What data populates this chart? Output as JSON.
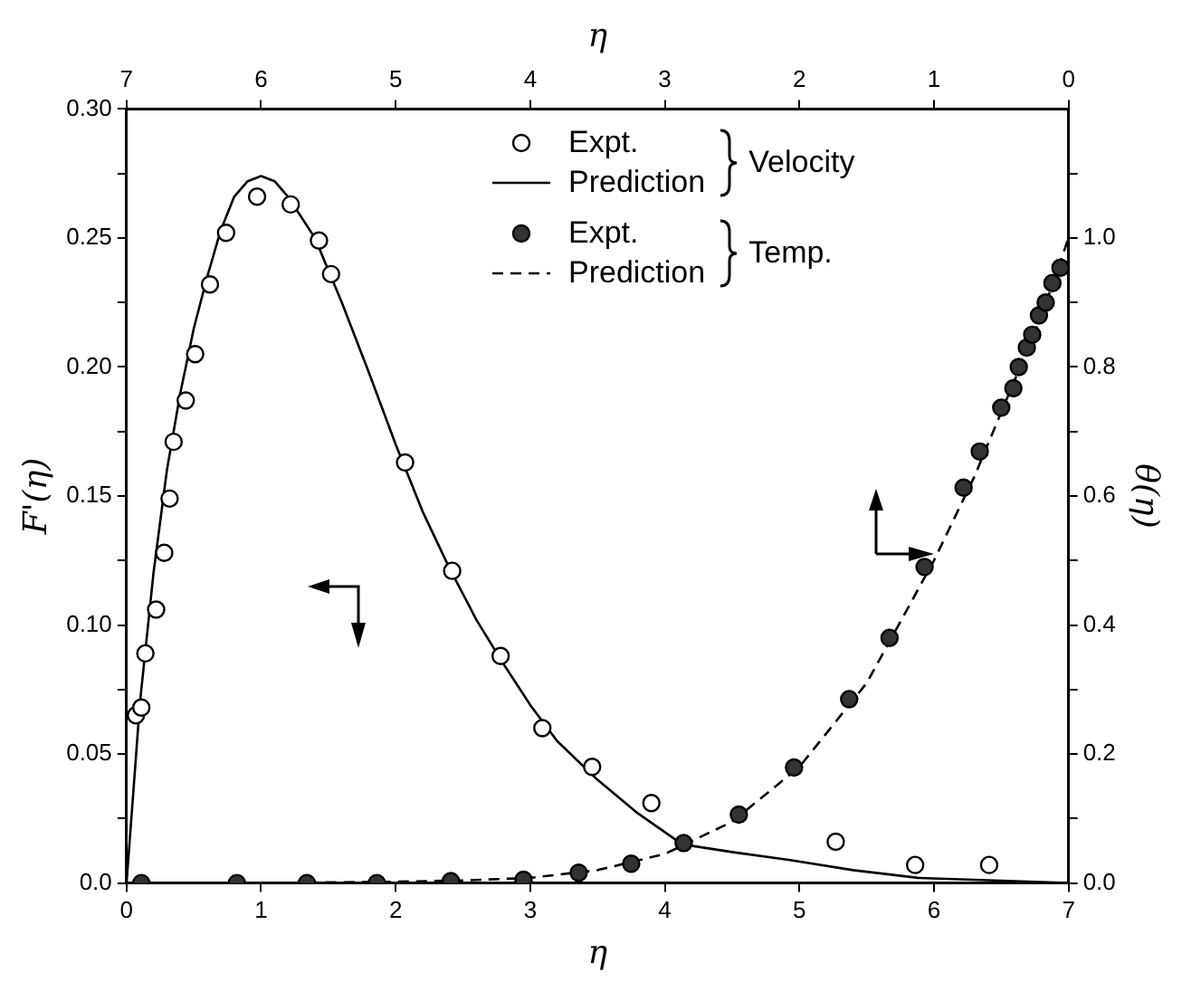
{
  "chart_data": {
    "type": "scatter",
    "xlabel": "η",
    "x2label": "η",
    "ylabel": "F'(η)",
    "y2label": "θ(η)",
    "xlim": [
      0,
      7
    ],
    "xticks": [
      0,
      1,
      2,
      3,
      4,
      5,
      6,
      7
    ],
    "x2lim": [
      7,
      0
    ],
    "x2ticks": [
      7,
      6,
      5,
      4,
      3,
      2,
      1,
      0
    ],
    "ylim": [
      0,
      0.3
    ],
    "yticks": [
      {
        "value": 0,
        "label": "0.0"
      },
      {
        "value": 0.025,
        "label": null
      },
      0.05,
      {
        "value": 0.075,
        "label": null
      },
      {
        "value": 0.1,
        "label": "0.10"
      },
      {
        "value": 0.125,
        "label": null
      },
      0.15,
      {
        "value": 0.175,
        "label": null
      },
      {
        "value": 0.2,
        "label": "0.20"
      },
      {
        "value": 0.225,
        "label": null
      },
      0.25,
      {
        "value": 0.275,
        "label": null
      },
      {
        "value": 0.3,
        "label": "0.30"
      }
    ],
    "y2lim": [
      0,
      1.2
    ],
    "y2ticks": [
      {
        "value": 0,
        "label": "0.0"
      },
      {
        "value": 0.1,
        "label": null
      },
      0.2,
      {
        "value": 0.3,
        "label": null
      },
      0.4,
      {
        "value": 0.5,
        "label": null
      },
      0.6,
      {
        "value": 0.7,
        "label": null
      },
      0.8,
      {
        "value": 0.9,
        "label": null
      },
      {
        "value": 1,
        "label": "1.0"
      },
      {
        "value": 1.1,
        "label": null
      }
    ],
    "grid": false,
    "legend": "top right",
    "annotations": [
      "Velocity",
      "Temp."
    ],
    "series": [
      {
        "name": "Expt.",
        "type": "scatter",
        "marker": "circle",
        "color": "#000000",
        "x": [
          0.07,
          0.11,
          0.14,
          0.22,
          0.28,
          0.32,
          0.35,
          0.44,
          0.51,
          0.62,
          0.74,
          0.97,
          1.22,
          1.43,
          1.52,
          2.07,
          2.42,
          2.78,
          3.09,
          3.46,
          3.9,
          5.27,
          5.86,
          6.41
        ],
        "values": [
          0.065,
          0.068,
          0.089,
          0.106,
          0.128,
          0.149,
          0.171,
          0.187,
          0.205,
          0.232,
          0.252,
          0.266,
          0.263,
          0.249,
          0.236,
          0.163,
          0.121,
          0.088,
          0.06,
          0.045,
          0.031,
          0.016,
          0.007,
          0.007
        ]
      },
      {
        "name": "Prediction",
        "type": "line",
        "marker": "none",
        "line_style": "solid",
        "color": "#000000",
        "x": [
          0,
          0.1,
          0.2,
          0.3,
          0.4,
          0.5,
          0.6,
          0.7,
          0.8,
          0.9,
          1.0,
          1.1,
          1.2,
          1.4,
          1.6,
          1.8,
          2.0,
          2.2,
          2.4,
          2.6,
          2.8,
          3.0,
          3.2,
          3.5,
          3.8,
          4.13,
          4.5,
          4.92,
          5.4,
          5.88,
          6.45,
          7
        ],
        "values": [
          0,
          0.07,
          0.12,
          0.16,
          0.19,
          0.215,
          0.235,
          0.253,
          0.266,
          0.272,
          0.274,
          0.272,
          0.266,
          0.25,
          0.225,
          0.198,
          0.17,
          0.144,
          0.122,
          0.102,
          0.085,
          0.069,
          0.055,
          0.04,
          0.027,
          0.015,
          0.012,
          0.009,
          0.005,
          0.002,
          0.001,
          0
        ]
      },
      {
        "name": "Expt.",
        "type": "scatter",
        "marker": "circle",
        "axis": "y2",
        "color": "#333333",
        "x": [
          0.11,
          0.82,
          1.34,
          1.86,
          2.41,
          2.95,
          3.36,
          3.75,
          4.14,
          4.55,
          4.96,
          5.37,
          5.67,
          5.93,
          6.22,
          6.34,
          6.5,
          6.59,
          6.63,
          6.69,
          6.73,
          6.78,
          6.83,
          6.88,
          6.94
        ],
        "values": [
          0,
          0,
          0,
          0,
          0.003,
          0.005,
          0.016,
          0.03,
          0.062,
          0.106,
          0.179,
          0.285,
          0.38,
          0.49,
          0.613,
          0.669,
          0.737,
          0.767,
          0.8,
          0.83,
          0.85,
          0.88,
          0.9,
          0.93,
          0.954
        ]
      },
      {
        "name": "Prediction",
        "type": "line",
        "marker": "none",
        "line_style": "dashed",
        "axis": "y2",
        "color": "#000000",
        "x": [
          0,
          1,
          2,
          2.5,
          3,
          3.5,
          4,
          4.5,
          5,
          5.5,
          6,
          6.3,
          6.6,
          6.8,
          7
        ],
        "values": [
          0,
          0,
          0.002,
          0.004,
          0.008,
          0.02,
          0.045,
          0.095,
          0.18,
          0.31,
          0.5,
          0.63,
          0.78,
          0.88,
          1.0
        ]
      }
    ]
  }
}
